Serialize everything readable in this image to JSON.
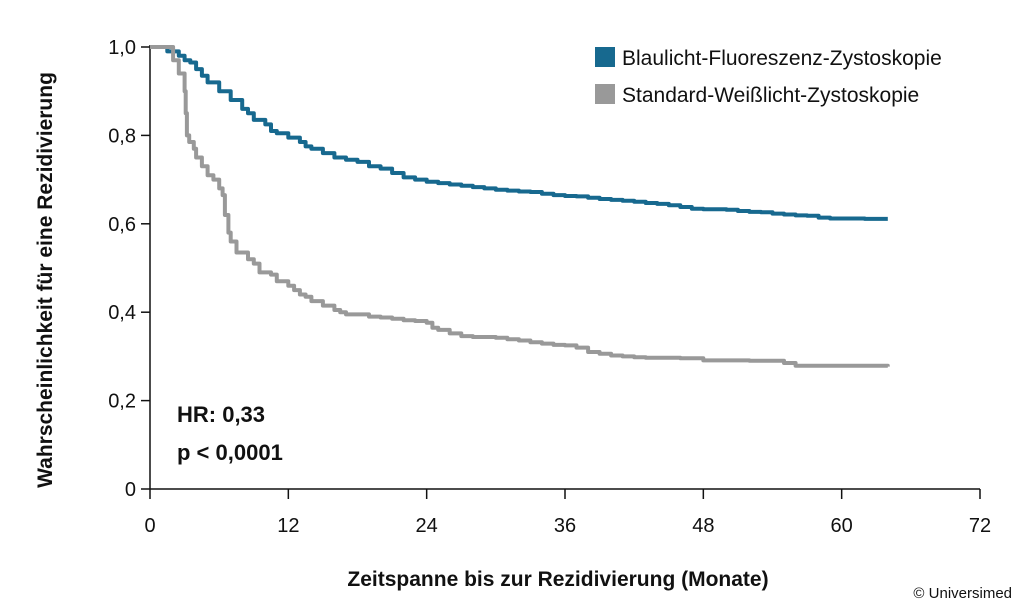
{
  "chart_data": {
    "type": "line",
    "title": "",
    "xlabel": "Zeitspanne bis zur Rezidivierung (Monate)",
    "ylabel": "Wahrscheinlichkeit für eine Rezidivierung",
    "xlim": [
      0,
      72
    ],
    "ylim": [
      0,
      1.0
    ],
    "x_ticks": [
      0,
      12,
      24,
      36,
      48,
      60,
      72
    ],
    "x_tick_labels": [
      "0",
      "12",
      "24",
      "36",
      "48",
      "60",
      "72"
    ],
    "y_ticks": [
      0,
      0.2,
      0.4,
      0.6,
      0.8,
      1.0
    ],
    "y_tick_labels": [
      "0",
      "0,2",
      "0,4",
      "0,6",
      "0,8",
      "1,0"
    ],
    "grid": false,
    "legend_position": "top-right",
    "series": [
      {
        "name": "Blaulicht-Fluoreszenz-Zystoskopie",
        "color": "#17698f",
        "step": true,
        "points": [
          [
            0,
            1.0
          ],
          [
            1,
            1.0
          ],
          [
            1.5,
            0.99
          ],
          [
            2.5,
            0.98
          ],
          [
            3,
            0.97
          ],
          [
            3.5,
            0.965
          ],
          [
            4,
            0.95
          ],
          [
            4.5,
            0.935
          ],
          [
            5,
            0.92
          ],
          [
            6,
            0.9
          ],
          [
            7,
            0.88
          ],
          [
            8,
            0.86
          ],
          [
            8.5,
            0.85
          ],
          [
            9,
            0.835
          ],
          [
            10,
            0.825
          ],
          [
            10.5,
            0.81
          ],
          [
            11,
            0.805
          ],
          [
            12,
            0.795
          ],
          [
            13,
            0.785
          ],
          [
            13.5,
            0.775
          ],
          [
            14,
            0.77
          ],
          [
            15,
            0.76
          ],
          [
            16,
            0.75
          ],
          [
            17,
            0.745
          ],
          [
            18,
            0.74
          ],
          [
            19,
            0.73
          ],
          [
            20,
            0.725
          ],
          [
            21,
            0.715
          ],
          [
            22,
            0.705
          ],
          [
            23,
            0.7
          ],
          [
            24,
            0.695
          ],
          [
            25,
            0.692
          ],
          [
            26,
            0.689
          ],
          [
            27,
            0.686
          ],
          [
            28,
            0.683
          ],
          [
            29,
            0.68
          ],
          [
            30,
            0.677
          ],
          [
            31,
            0.675
          ],
          [
            32,
            0.673
          ],
          [
            33,
            0.672
          ],
          [
            34,
            0.668
          ],
          [
            35,
            0.665
          ],
          [
            36,
            0.663
          ],
          [
            37,
            0.662
          ],
          [
            38,
            0.659
          ],
          [
            39,
            0.656
          ],
          [
            40,
            0.654
          ],
          [
            41,
            0.652
          ],
          [
            42,
            0.65
          ],
          [
            43,
            0.647
          ],
          [
            44,
            0.645
          ],
          [
            45,
            0.642
          ],
          [
            46,
            0.638
          ],
          [
            47,
            0.634
          ],
          [
            48,
            0.633
          ],
          [
            50,
            0.632
          ],
          [
            51,
            0.629
          ],
          [
            52,
            0.627
          ],
          [
            53,
            0.626
          ],
          [
            54,
            0.623
          ],
          [
            55,
            0.621
          ],
          [
            56,
            0.619
          ],
          [
            57,
            0.618
          ],
          [
            58,
            0.614
          ],
          [
            59,
            0.612
          ],
          [
            62,
            0.611
          ],
          [
            64,
            0.611
          ]
        ]
      },
      {
        "name": "Standard-Weißlicht-Zystoskopie",
        "color": "#999999",
        "step": true,
        "points": [
          [
            0,
            1.0
          ],
          [
            1.5,
            1.0
          ],
          [
            2,
            0.97
          ],
          [
            2.5,
            0.94
          ],
          [
            3,
            0.9
          ],
          [
            3.1,
            0.85
          ],
          [
            3.2,
            0.8
          ],
          [
            3.4,
            0.785
          ],
          [
            3.8,
            0.77
          ],
          [
            4,
            0.75
          ],
          [
            4.5,
            0.73
          ],
          [
            5,
            0.71
          ],
          [
            5.5,
            0.7
          ],
          [
            6,
            0.68
          ],
          [
            6.3,
            0.665
          ],
          [
            6.5,
            0.62
          ],
          [
            6.8,
            0.58
          ],
          [
            7,
            0.56
          ],
          [
            7.5,
            0.535
          ],
          [
            8,
            0.535
          ],
          [
            8.5,
            0.52
          ],
          [
            9,
            0.51
          ],
          [
            9.5,
            0.49
          ],
          [
            10.5,
            0.485
          ],
          [
            11,
            0.47
          ],
          [
            12,
            0.46
          ],
          [
            12.5,
            0.45
          ],
          [
            13,
            0.44
          ],
          [
            13.5,
            0.435
          ],
          [
            14,
            0.425
          ],
          [
            15,
            0.415
          ],
          [
            16,
            0.405
          ],
          [
            16.5,
            0.4
          ],
          [
            17,
            0.395
          ],
          [
            18,
            0.395
          ],
          [
            19,
            0.39
          ],
          [
            20,
            0.388
          ],
          [
            21,
            0.385
          ],
          [
            22,
            0.382
          ],
          [
            23,
            0.38
          ],
          [
            24,
            0.376
          ],
          [
            24.5,
            0.365
          ],
          [
            25,
            0.36
          ],
          [
            26,
            0.352
          ],
          [
            27,
            0.346
          ],
          [
            28,
            0.344
          ],
          [
            30,
            0.342
          ],
          [
            31,
            0.339
          ],
          [
            32,
            0.336
          ],
          [
            33,
            0.332
          ],
          [
            34,
            0.329
          ],
          [
            35,
            0.326
          ],
          [
            36,
            0.325
          ],
          [
            37,
            0.32
          ],
          [
            38,
            0.31
          ],
          [
            39,
            0.306
          ],
          [
            40,
            0.302
          ],
          [
            41,
            0.3
          ],
          [
            42,
            0.298
          ],
          [
            43,
            0.297
          ],
          [
            46,
            0.296
          ],
          [
            48,
            0.291
          ],
          [
            52,
            0.29
          ],
          [
            55,
            0.285
          ],
          [
            56,
            0.279
          ],
          [
            64,
            0.277
          ]
        ]
      }
    ],
    "annotations": {
      "hr": "HR: 0,33",
      "p": "p < 0,0001"
    }
  },
  "footer": {
    "copyright": "© Universimed"
  }
}
